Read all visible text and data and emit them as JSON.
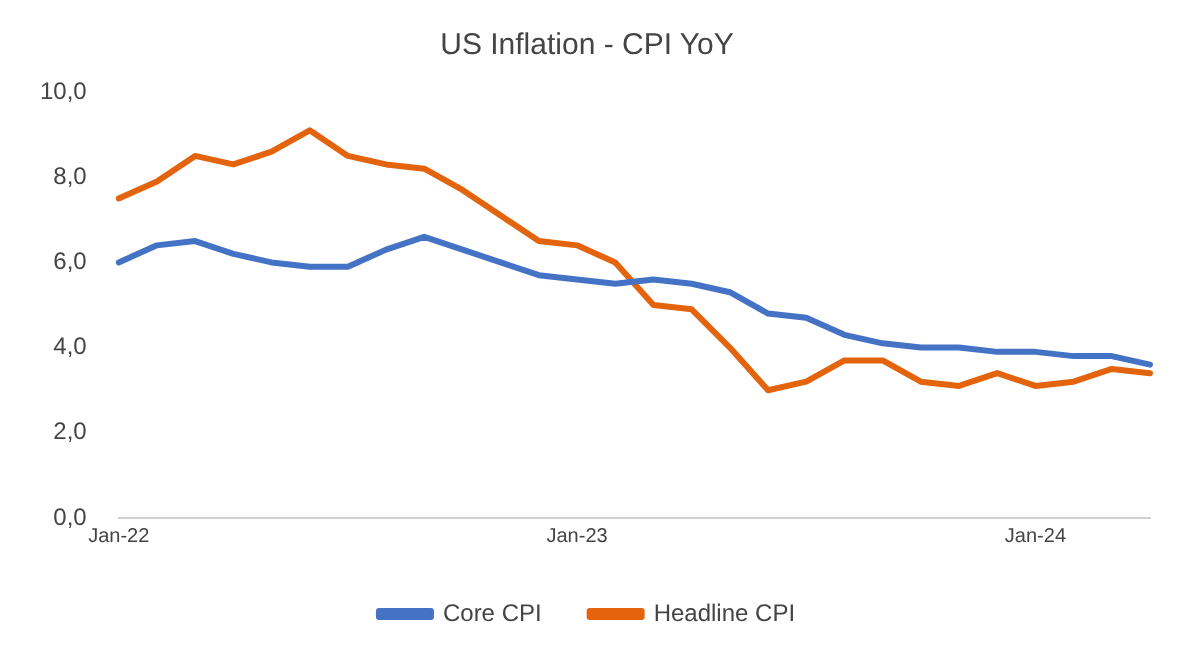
{
  "chart_data": {
    "type": "line",
    "title": "US Inflation - CPI YoY",
    "categories": [
      "Jan-22",
      null,
      null,
      null,
      null,
      null,
      null,
      null,
      null,
      null,
      null,
      null,
      "Jan-23",
      null,
      null,
      null,
      null,
      null,
      null,
      null,
      null,
      null,
      null,
      null,
      "Jan-24",
      null,
      null,
      null
    ],
    "series": [
      {
        "name": "Core CPI",
        "color": "#4472c4",
        "values": [
          6.0,
          6.4,
          6.5,
          6.2,
          6.0,
          5.9,
          5.9,
          6.3,
          6.6,
          6.3,
          6.0,
          5.7,
          5.6,
          5.5,
          5.6,
          5.5,
          5.3,
          4.8,
          4.7,
          4.3,
          4.1,
          4.0,
          4.0,
          3.9,
          3.9,
          3.8,
          3.8,
          3.6
        ]
      },
      {
        "name": "Headline CPI",
        "color": "#e3640c",
        "values": [
          7.5,
          7.9,
          8.5,
          8.3,
          8.6,
          9.1,
          8.5,
          8.3,
          8.2,
          7.7,
          7.1,
          6.5,
          6.4,
          6.0,
          5.0,
          4.9,
          4.0,
          3.0,
          3.2,
          3.7,
          3.7,
          3.2,
          3.1,
          3.4,
          3.1,
          3.2,
          3.5,
          3.4
        ]
      }
    ],
    "ylim": [
      0,
      10
    ],
    "yticks": [
      {
        "value": 0,
        "label": "0,0"
      },
      {
        "value": 2,
        "label": "2,0"
      },
      {
        "value": 4,
        "label": "4,0"
      },
      {
        "value": 6,
        "label": "6,0"
      },
      {
        "value": 8,
        "label": "8,0"
      },
      {
        "value": 10,
        "label": "10,0"
      }
    ],
    "grid": false,
    "legend": "bottom",
    "marker": "none",
    "line_style": "solid"
  }
}
